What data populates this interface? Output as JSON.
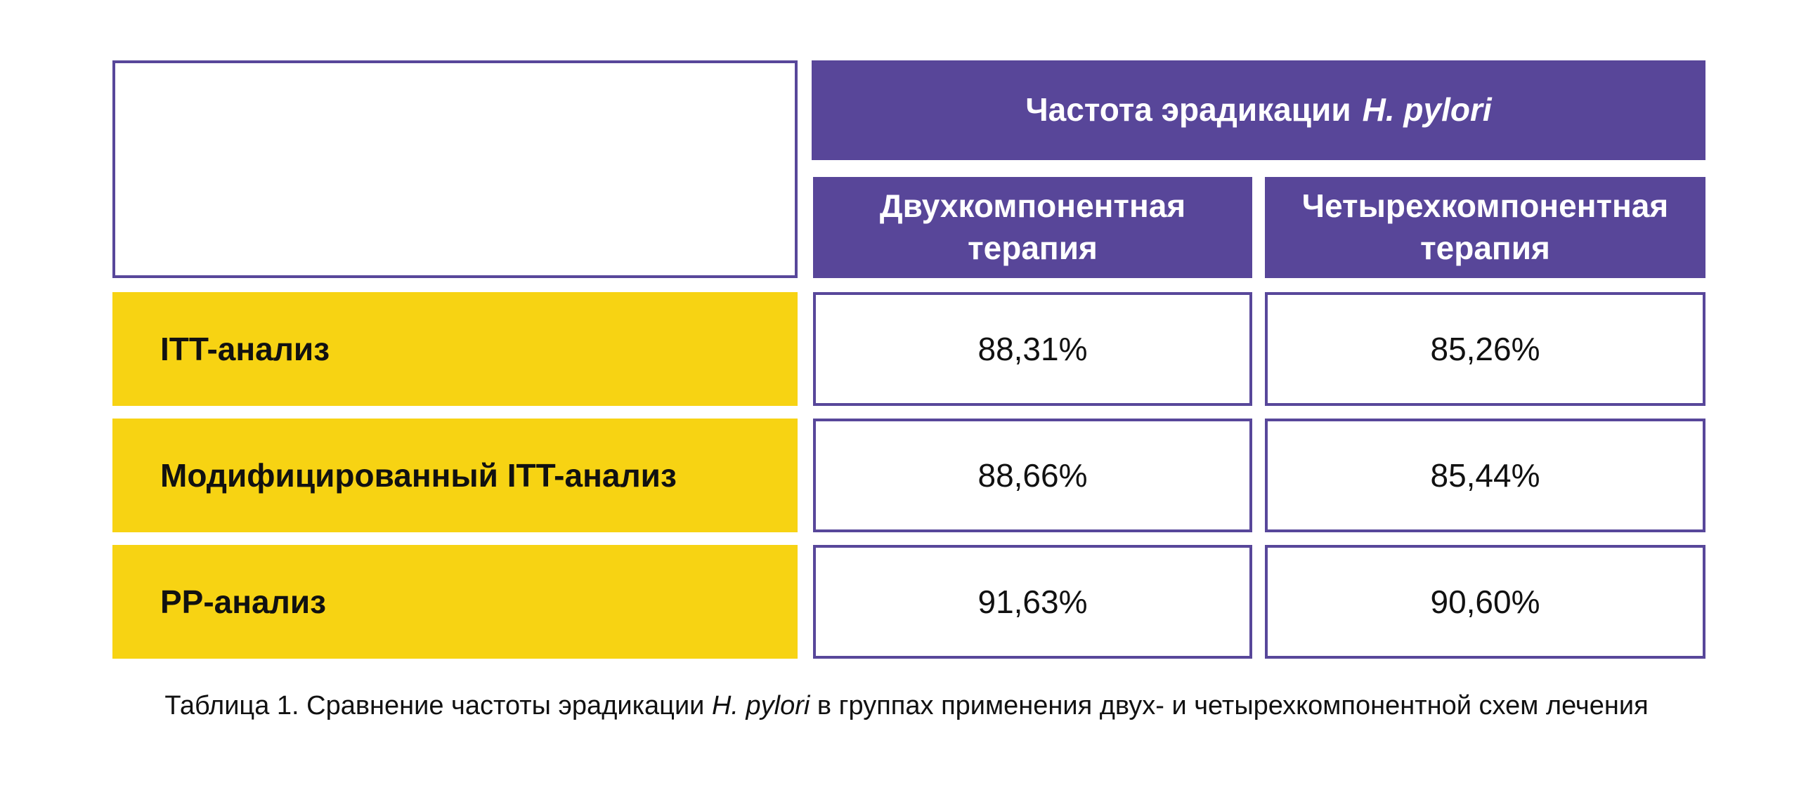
{
  "table": {
    "header_main": {
      "text": "Частота эрадикации",
      "italic": "H. pylori"
    },
    "columns": [
      "Двухкомпонентная терапия",
      "Четырехкомпонентная терапия"
    ],
    "rows": [
      {
        "label": "ITT-анализ",
        "values": [
          "88,31%",
          "85,26%"
        ]
      },
      {
        "label": "Модифицированный ITT-анализ",
        "values": [
          "88,66%",
          "85,44%"
        ]
      },
      {
        "label": "PP-анализ",
        "values": [
          "91,63%",
          "90,60%"
        ]
      }
    ]
  },
  "caption": {
    "prefix": "Таблица 1. Сравнение частоты эрадикации",
    "italic": "H. pylori",
    "suffix": "в группах применения двух- и четырехкомпонентной схем лечения"
  },
  "colors": {
    "header_bg": "#584699",
    "row_label_bg": "#f7d313",
    "border": "#58479a"
  }
}
